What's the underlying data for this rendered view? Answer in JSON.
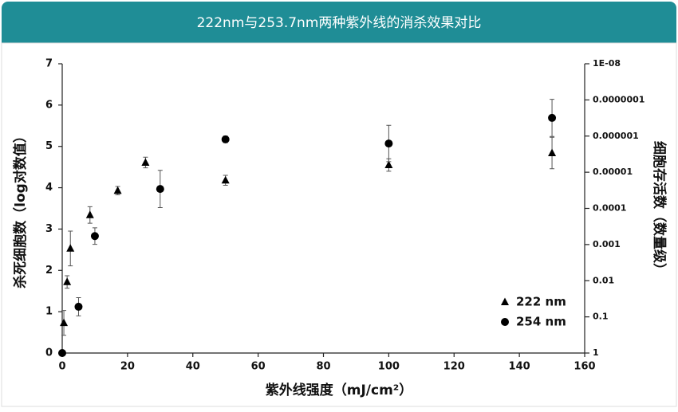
{
  "chart_data": {
    "type": "scatter",
    "title": "222nm与253.7nm两种紫外线的消杀效果对比",
    "xlabel": "紫外线强度（mJ/cm²）",
    "ylabel": "杀死细胞数（log对数值）",
    "y2label": "细胞存活数（数量级）",
    "xlim": [
      0,
      160
    ],
    "xticks": [
      0,
      20,
      40,
      60,
      80,
      100,
      120,
      140,
      160
    ],
    "ylim": [
      0,
      7
    ],
    "yticks": [
      0,
      1,
      2,
      3,
      4,
      5,
      6,
      7
    ],
    "y2lim": [
      1,
      1e-08
    ],
    "y2log": true,
    "y2ticks": [
      {
        "value": 1e-08,
        "label": "1E-08"
      },
      {
        "value": 1e-07,
        "label": "0.0000001"
      },
      1e-06,
      1e-05,
      0.0001,
      0.001,
      0.01,
      0.1,
      1
    ],
    "grid": false,
    "legend": "lower right",
    "series": [
      {
        "name": "222 nm",
        "color": "#000000",
        "marker": "triangle",
        "x": [
          0.5,
          1.5,
          2.5,
          8.5,
          17,
          25.5,
          50,
          100,
          150
        ],
        "values": [
          0.73,
          1.72,
          2.53,
          3.34,
          3.93,
          4.61,
          4.18,
          4.55,
          4.84
        ],
        "errors": [
          0.3,
          0.15,
          0.42,
          0.2,
          0.1,
          0.13,
          0.12,
          0.15,
          0.38
        ]
      },
      {
        "name": "254 nm",
        "color": "#000000",
        "marker": "circle",
        "x": [
          0,
          5,
          10,
          30,
          50,
          100,
          150
        ],
        "values": [
          0,
          1.12,
          2.83,
          3.97,
          5.17,
          5.07,
          5.69
        ],
        "errors": [
          0,
          0.22,
          0.2,
          0.45,
          0.08,
          0.44,
          0.45
        ]
      }
    ]
  }
}
